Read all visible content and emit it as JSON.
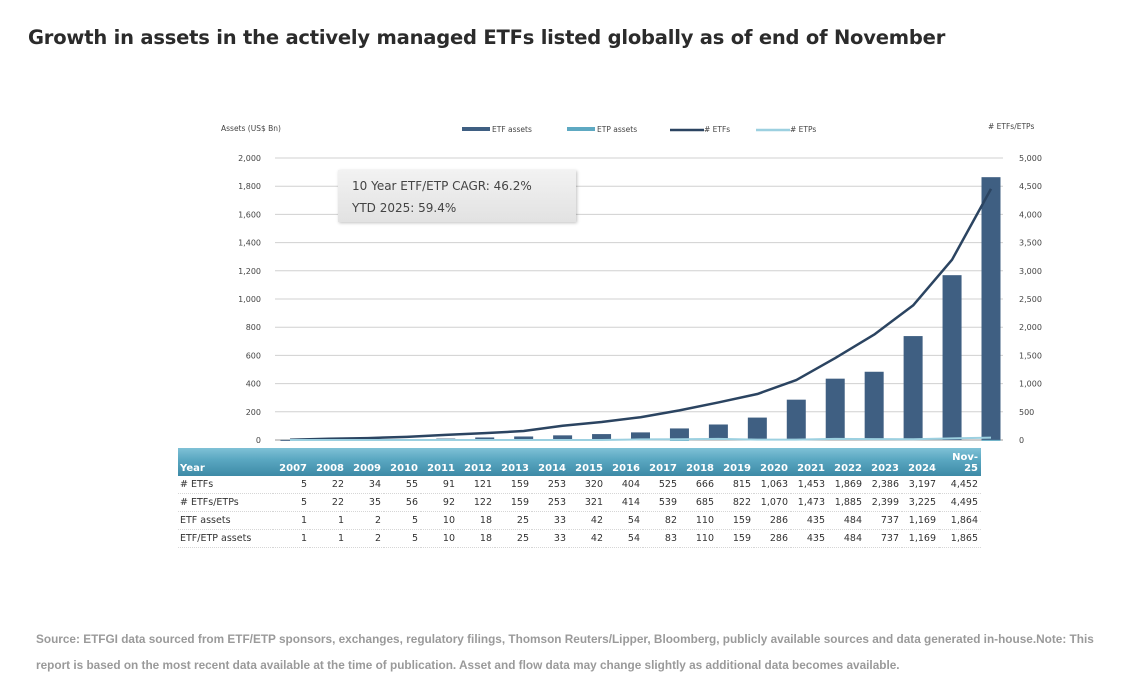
{
  "page": {
    "title": "Growth in assets in the actively managed ETFs listed globally as of end of November",
    "annotation": {
      "line1": "10 Year ETF/ETP CAGR: 46.2%",
      "line2": "YTD 2025: 59.4%"
    },
    "source_text": "Source: ETFGI data sourced from ETF/ETP sponsors, exchanges, regulatory filings, Thomson Reuters/Lipper, Bloomberg, publicly available sources and data generated in-house.Note: This report is based on the most recent data available at the time of publication. Asset and flow data may change slightly as additional data becomes available."
  },
  "colors": {
    "etf_assets": "#3f5f82",
    "etp_assets": "#5ea9c2",
    "num_etfs": "#2b4461",
    "num_etps": "#9cd0e0",
    "table_header": "#4f9cb8",
    "grid": "#d0d0d0"
  },
  "chart_data": {
    "type": "bar",
    "title": "Growth in assets in the actively managed ETFs listed globally as of end of November",
    "categories": [
      "2007",
      "2008",
      "2009",
      "2010",
      "2011",
      "2012",
      "2013",
      "2014",
      "2015",
      "2016",
      "2017",
      "2018",
      "2019",
      "2020",
      "2021",
      "2022",
      "2023",
      "2024",
      "Nov-25"
    ],
    "ylabel": "Assets (US$ Bn)",
    "y2label": "# ETFs/ETPs",
    "ylim": [
      0,
      2000
    ],
    "y2lim": [
      0,
      5000
    ],
    "yticks": [
      "0",
      "200",
      "400",
      "600",
      "800",
      "1,000",
      "1,200",
      "1,400",
      "1,600",
      "1,800",
      "2,000"
    ],
    "y2ticks": [
      "0",
      "500",
      "1,000",
      "1,500",
      "2,000",
      "2,500",
      "3,000",
      "3,500",
      "4,000",
      "4,500",
      "5,000"
    ],
    "grid": true,
    "legend_position": "top",
    "legend": [
      "ETF assets",
      "ETP assets",
      "# ETFs",
      "# ETPs"
    ],
    "series": [
      {
        "name": "ETF assets",
        "type": "bar",
        "axis": "left",
        "values": [
          1,
          1,
          2,
          5,
          10,
          18,
          25,
          33,
          42,
          54,
          82,
          110,
          159,
          286,
          435,
          484,
          737,
          1169,
          1864
        ]
      },
      {
        "name": "ETP assets",
        "type": "bar",
        "axis": "left",
        "values": [
          0,
          0,
          0,
          0,
          0,
          0,
          0,
          0,
          0,
          0,
          1,
          0,
          0,
          0,
          0,
          0,
          0,
          0,
          1
        ]
      },
      {
        "name": "# ETFs",
        "type": "line",
        "axis": "right",
        "values": [
          5,
          22,
          34,
          55,
          91,
          121,
          159,
          253,
          320,
          404,
          525,
          666,
          815,
          1063,
          1453,
          1869,
          2386,
          3197,
          4452
        ]
      },
      {
        "name": "# ETPs",
        "type": "line",
        "axis": "right",
        "values": [
          0,
          0,
          1,
          1,
          1,
          1,
          0,
          0,
          1,
          10,
          14,
          19,
          7,
          7,
          20,
          16,
          13,
          28,
          43
        ]
      }
    ],
    "table": {
      "header": "Year",
      "rows": [
        {
          "label": "# ETFs",
          "values": [
            "5",
            "22",
            "34",
            "55",
            "91",
            "121",
            "159",
            "253",
            "320",
            "404",
            "525",
            "666",
            "815",
            "1,063",
            "1,453",
            "1,869",
            "2,386",
            "3,197",
            "4,452"
          ]
        },
        {
          "label": "# ETFs/ETPs",
          "values": [
            "5",
            "22",
            "35",
            "56",
            "92",
            "122",
            "159",
            "253",
            "321",
            "414",
            "539",
            "685",
            "822",
            "1,070",
            "1,473",
            "1,885",
            "2,399",
            "3,225",
            "4,495"
          ]
        },
        {
          "label": "ETF assets",
          "values": [
            "1",
            "1",
            "2",
            "5",
            "10",
            "18",
            "25",
            "33",
            "42",
            "54",
            "82",
            "110",
            "159",
            "286",
            "435",
            "484",
            "737",
            "1,169",
            "1,864"
          ]
        },
        {
          "label": "ETF/ETP assets",
          "values": [
            "1",
            "1",
            "2",
            "5",
            "10",
            "18",
            "25",
            "33",
            "42",
            "54",
            "83",
            "110",
            "159",
            "286",
            "435",
            "484",
            "737",
            "1,169",
            "1,865"
          ]
        }
      ]
    }
  }
}
